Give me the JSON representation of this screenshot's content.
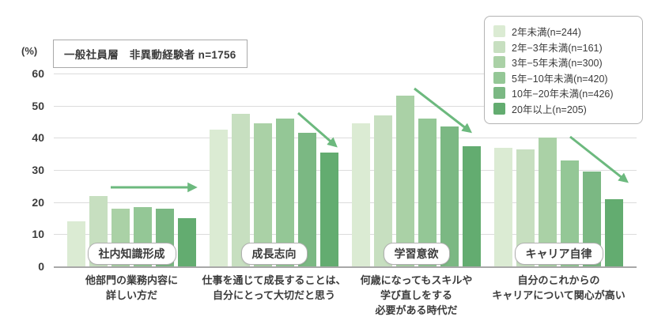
{
  "header": {
    "unit_label": "(%)",
    "sample_label": "一般社員層　非異動経験者 n=1756"
  },
  "chart_data": {
    "type": "bar",
    "title": "一般社員層　非異動経験者 n=1756",
    "ylabel": "(%)",
    "ylim": [
      0,
      60
    ],
    "yticks": [
      0,
      10,
      20,
      30,
      40,
      50,
      60
    ],
    "grid": true,
    "legend_position": "top-right",
    "arrow_color": "#6cb97e",
    "categories": [
      {
        "tag": "社内知識形成",
        "question_lines": [
          "他部門の業務内容に",
          "詳しい方だ"
        ],
        "trend": "flat"
      },
      {
        "tag": "成長志向",
        "question_lines": [
          "仕事を通じて成長することは、",
          "自分にとって大切だと思う"
        ],
        "trend": "down"
      },
      {
        "tag": "学習意欲",
        "question_lines": [
          "何歳になってもスキルや",
          "学び直しをする",
          "必要がある時代だ"
        ],
        "trend": "down"
      },
      {
        "tag": "キャリア自律",
        "question_lines": [
          "自分のこれからの",
          "キャリアについて関心が高い"
        ],
        "trend": "down"
      }
    ],
    "series": [
      {
        "name": "2年未満(n=244)",
        "color": "#dbebd3",
        "values": [
          14,
          42.5,
          44.5,
          37
        ]
      },
      {
        "name": "2年−3年未満(n=161)",
        "color": "#c7dfc0",
        "values": [
          22,
          47.5,
          47,
          36.5
        ]
      },
      {
        "name": "3年−5年未満(n=300)",
        "color": "#aad1a6",
        "values": [
          18,
          44.5,
          53,
          40
        ]
      },
      {
        "name": "5年−10年未満(n=420)",
        "color": "#94c796",
        "values": [
          18.5,
          46,
          46,
          33
        ]
      },
      {
        "name": "10年−20年未満(n=426)",
        "color": "#7bb883",
        "values": [
          18,
          41.5,
          43.5,
          29.5
        ]
      },
      {
        "name": "20年以上(n=205)",
        "color": "#63ac70",
        "values": [
          15,
          35.5,
          37.5,
          21
        ]
      }
    ]
  }
}
